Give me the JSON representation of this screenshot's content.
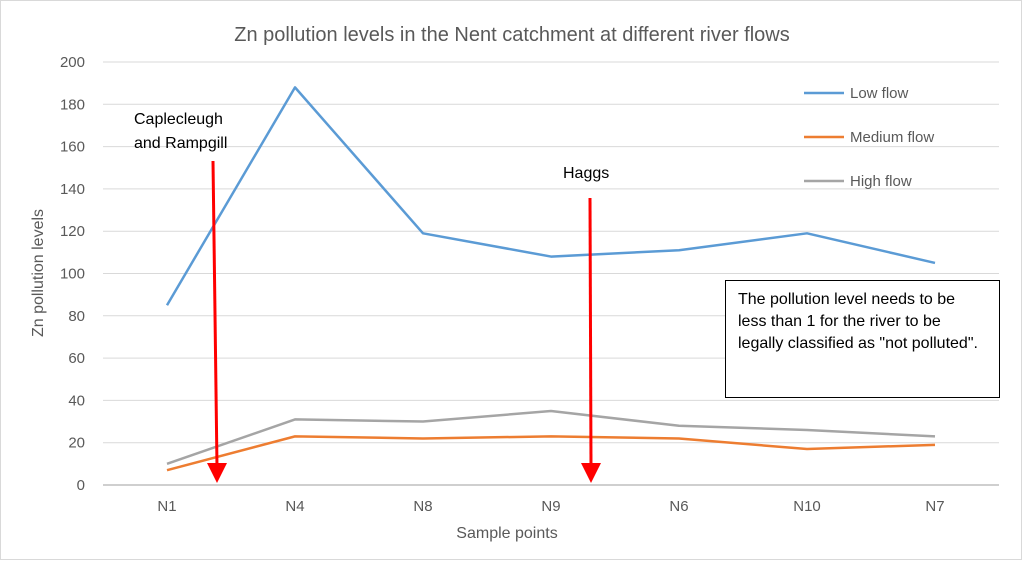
{
  "chart_data": {
    "type": "line",
    "title": "Zn pollution levels in the Nent catchment at different river flows",
    "xlabel": "Sample points",
    "ylabel": "Zn pollution levels",
    "ylim": [
      0,
      200
    ],
    "yticks": [
      0,
      20,
      40,
      60,
      80,
      100,
      120,
      140,
      160,
      180,
      200
    ],
    "grid": true,
    "legend_position": "top-right",
    "categories": [
      "N1",
      "N4",
      "N8",
      "N9",
      "N6",
      "N10",
      "N7"
    ],
    "series": [
      {
        "name": "Low flow",
        "color": "#5b9bd5",
        "values": [
          85,
          188,
          119,
          108,
          111,
          119,
          105
        ]
      },
      {
        "name": "Medium flow",
        "color": "#ed7d31",
        "values": [
          7,
          23,
          22,
          23,
          22,
          17,
          19
        ]
      },
      {
        "name": "High flow",
        "color": "#a5a5a5",
        "values": [
          10,
          31,
          30,
          35,
          28,
          26,
          23
        ]
      }
    ],
    "annotations": [
      {
        "text_lines": [
          "Caplecleugh",
          "and Rampgill"
        ],
        "arrow_color": "#ff0000",
        "between": [
          "N1",
          "N4"
        ]
      },
      {
        "text_lines": [
          "Haggs"
        ],
        "arrow_color": "#ff0000",
        "between": [
          "N9",
          "N6"
        ]
      }
    ],
    "note": "The pollution level needs to be less than 1 for the river to be legally classified as \"not polluted\"."
  }
}
